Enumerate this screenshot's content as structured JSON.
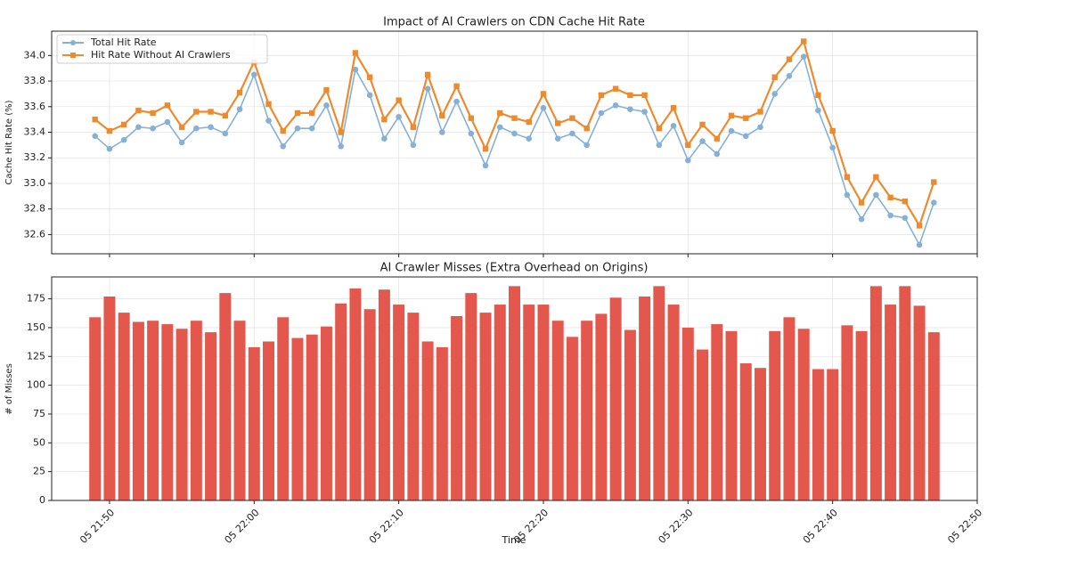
{
  "chart_data": [
    {
      "type": "line",
      "title": "Impact of AI Crawlers on CDN Cache Hit Rate",
      "y_label": "Cache Hit Rate (%)",
      "x": [
        "05 21:49",
        "05 21:50",
        "05 21:51",
        "05 21:52",
        "05 21:53",
        "05 21:54",
        "05 21:55",
        "05 21:56",
        "05 21:57",
        "05 21:58",
        "05 21:59",
        "05 22:00",
        "05 22:01",
        "05 22:02",
        "05 22:03",
        "05 22:04",
        "05 22:05",
        "05 22:06",
        "05 22:07",
        "05 22:08",
        "05 22:09",
        "05 22:10",
        "05 22:11",
        "05 22:12",
        "05 22:13",
        "05 22:14",
        "05 22:15",
        "05 22:16",
        "05 22:17",
        "05 22:18",
        "05 22:19",
        "05 22:20",
        "05 22:21",
        "05 22:22",
        "05 22:23",
        "05 22:24",
        "05 22:25",
        "05 22:26",
        "05 22:27",
        "05 22:28",
        "05 22:29",
        "05 22:30",
        "05 22:31",
        "05 22:32",
        "05 22:33",
        "05 22:34",
        "05 22:35",
        "05 22:36",
        "05 22:37",
        "05 22:38",
        "05 22:39",
        "05 22:40",
        "05 22:41",
        "05 22:42",
        "05 22:43",
        "05 22:44",
        "05 22:45",
        "05 22:46",
        "05 22:47"
      ],
      "series": [
        {
          "name": "Total Hit Rate",
          "color": "#86b0d6",
          "marker": "circle",
          "values": [
            33.37,
            33.27,
            33.34,
            33.44,
            33.43,
            33.48,
            33.32,
            33.43,
            33.44,
            33.39,
            33.58,
            33.85,
            33.49,
            33.29,
            33.43,
            33.43,
            33.61,
            33.29,
            33.89,
            33.69,
            33.35,
            33.52,
            33.3,
            33.74,
            33.4,
            33.64,
            33.39,
            33.14,
            33.44,
            33.39,
            33.35,
            33.59,
            33.35,
            33.39,
            33.3,
            33.55,
            33.61,
            33.58,
            33.56,
            33.3,
            33.45,
            33.18,
            33.33,
            33.23,
            33.41,
            33.37,
            33.44,
            33.7,
            33.84,
            33.99,
            33.57,
            33.28,
            32.91,
            32.72,
            32.91,
            32.75,
            32.73,
            32.52,
            32.85
          ]
        },
        {
          "name": "Hit Rate Without AI Crawlers",
          "color": "#ee8a2e",
          "marker": "square",
          "values": [
            33.5,
            33.41,
            33.46,
            33.57,
            33.55,
            33.61,
            33.44,
            33.56,
            33.56,
            33.53,
            33.71,
            33.95,
            33.62,
            33.41,
            33.55,
            33.55,
            33.73,
            33.4,
            34.02,
            33.83,
            33.5,
            33.65,
            33.44,
            33.85,
            33.53,
            33.76,
            33.51,
            33.27,
            33.55,
            33.51,
            33.48,
            33.7,
            33.47,
            33.51,
            33.43,
            33.69,
            33.74,
            33.69,
            33.69,
            33.43,
            33.59,
            33.3,
            33.46,
            33.35,
            33.53,
            33.51,
            33.56,
            33.83,
            33.97,
            34.11,
            33.69,
            33.41,
            33.05,
            32.85,
            33.05,
            32.89,
            32.86,
            32.67,
            33.01
          ]
        }
      ],
      "xlim": [
        "05 21:46",
        "05 22:50"
      ],
      "ylim": [
        32.45,
        34.19
      ],
      "yticks": [
        32.6,
        32.8,
        {
          "value": 33.0,
          "label": "33.0"
        },
        33.2,
        33.4,
        33.6,
        33.8,
        {
          "value": 34.0,
          "label": "34.0"
        }
      ],
      "grid": true,
      "legend": "upper left"
    },
    {
      "type": "bar",
      "title": "AI Crawler Misses (Extra Overhead on Origins)",
      "x_label": "Time",
      "y_label": "# of Misses",
      "x": [
        "05 21:49",
        "05 21:50",
        "05 21:51",
        "05 21:52",
        "05 21:53",
        "05 21:54",
        "05 21:55",
        "05 21:56",
        "05 21:57",
        "05 21:58",
        "05 21:59",
        "05 22:00",
        "05 22:01",
        "05 22:02",
        "05 22:03",
        "05 22:04",
        "05 22:05",
        "05 22:06",
        "05 22:07",
        "05 22:08",
        "05 22:09",
        "05 22:10",
        "05 22:11",
        "05 22:12",
        "05 22:13",
        "05 22:14",
        "05 22:15",
        "05 22:16",
        "05 22:17",
        "05 22:18",
        "05 22:19",
        "05 22:20",
        "05 22:21",
        "05 22:22",
        "05 22:23",
        "05 22:24",
        "05 22:25",
        "05 22:26",
        "05 22:27",
        "05 22:28",
        "05 22:29",
        "05 22:30",
        "05 22:31",
        "05 22:32",
        "05 22:33",
        "05 22:34",
        "05 22:35",
        "05 22:36",
        "05 22:37",
        "05 22:38",
        "05 22:39",
        "05 22:40",
        "05 22:41",
        "05 22:42",
        "05 22:43",
        "05 22:44",
        "05 22:45",
        "05 22:46",
        "05 22:47"
      ],
      "values": [
        159,
        177,
        163,
        155,
        156,
        153,
        149,
        156,
        146,
        180,
        156,
        133,
        138,
        159,
        141,
        144,
        151,
        171,
        184,
        166,
        183,
        170,
        163,
        138,
        133,
        160,
        180,
        163,
        170,
        186,
        170,
        170,
        156,
        142,
        156,
        162,
        176,
        148,
        177,
        186,
        170,
        150,
        131,
        153,
        147,
        119,
        115,
        147,
        159,
        149,
        114,
        114,
        152,
        147,
        186,
        170,
        186,
        169,
        146
      ],
      "color": "#e4574c",
      "xlim": [
        "05 21:46",
        "05 22:50"
      ],
      "xticks": [
        "05 21:50",
        "05 22:00",
        "05 22:10",
        "05 22:20",
        "05 22:30",
        "05 22:40",
        "05 22:50"
      ],
      "ylim": [
        0,
        194
      ],
      "yticks": [
        0,
        25,
        50,
        75,
        100,
        125,
        150,
        175
      ],
      "grid": true
    }
  ]
}
